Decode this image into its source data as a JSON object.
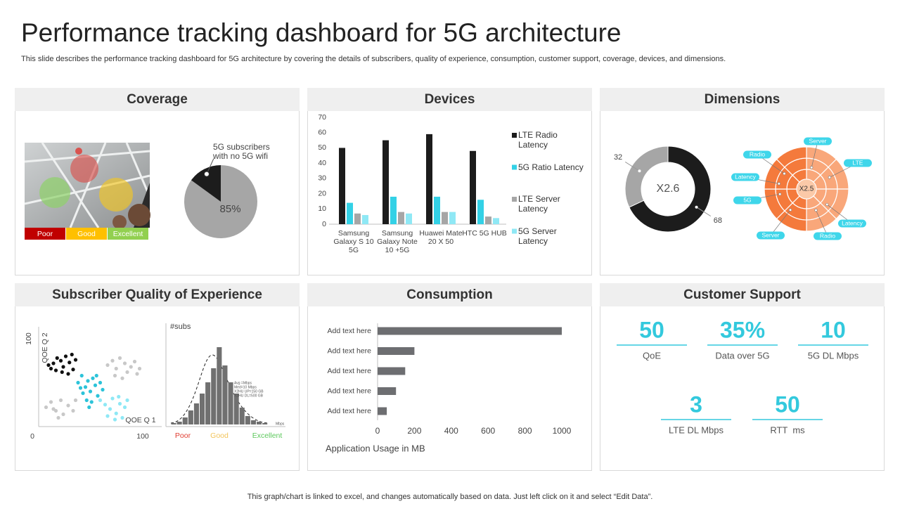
{
  "title": "Performance tracking dashboard for 5G architecture",
  "subtitle": "This slide describes the performance tracking dashboard for 5G architecture by covering the details of subscribers, quality of experience, consumption, customer support, coverage, devices, and dimensions.",
  "footer": "This graph/chart is linked to excel,  and changes automatically based on data. Just left click on it and select “Edit Data”.",
  "panels": [
    "Coverage",
    "Devices",
    "Dimensions",
    "Subscriber Quality of Experience",
    "Consumption",
    "Customer Support"
  ],
  "coverage_legend": [
    {
      "label": "Poor",
      "color": "#c00000"
    },
    {
      "label": "Good",
      "color": "#ffc000"
    },
    {
      "label": "Excellent",
      "color": "#92d050"
    }
  ],
  "chart_data": [
    {
      "type": "pie",
      "annotation": "5G subscribers with no 5G wifi",
      "values": [
        85,
        15
      ],
      "value_labels": [
        "85%",
        null
      ],
      "colors": [
        "#a6a6a6",
        "#1c1c1c"
      ]
    },
    {
      "type": "bar",
      "categories": [
        "Samsung Galaxy S 10 5G",
        "Samsung Galaxy Note 10 +5G",
        "Huawei Mate 20 X 50",
        "HTC 5G HUB"
      ],
      "series": [
        {
          "name": "LTE Radio Latency",
          "color": "#1c1c1c",
          "values": [
            50,
            55,
            59,
            48
          ]
        },
        {
          "name": "5G Ratio Latency",
          "color": "#33d1e6",
          "values": [
            14,
            18,
            18,
            16
          ]
        },
        {
          "name": "LTE Server Latency",
          "color": "#a6a6a6",
          "values": [
            7,
            8,
            8,
            5
          ]
        },
        {
          "name": "5G Server Latency",
          "color": "#8fe8f5",
          "values": [
            6,
            7,
            8,
            4
          ]
        }
      ],
      "ylim": [
        0,
        70
      ],
      "yticks": [
        0,
        10,
        20,
        30,
        40,
        50,
        60,
        70
      ]
    },
    {
      "type": "donut",
      "center_label": "X2.6",
      "values": [
        68,
        32
      ],
      "colors": [
        "#1c1c1c",
        "#a6a6a6"
      ]
    },
    {
      "type": "scatter",
      "xlabel": "QOE Q 1",
      "ylabel": "QOE Q 2",
      "xlim": [
        0,
        100
      ],
      "ylim": [
        0,
        100
      ],
      "xticks": [
        0,
        100
      ],
      "yticks": [
        100
      ],
      "series": [
        {
          "color": "#c8c8c8",
          "x": [
            56,
            60,
            63,
            66,
            70,
            72,
            75,
            78,
            80,
            68,
            62,
            82,
            6,
            10,
            14,
            18,
            20,
            24,
            28,
            30,
            16,
            12
          ],
          "y": [
            70,
            75,
            66,
            78,
            72,
            62,
            68,
            74,
            60,
            55,
            58,
            66,
            22,
            28,
            18,
            30,
            14,
            24,
            18,
            30,
            10,
            20
          ]
        },
        {
          "color": "#111111",
          "x": [
            8,
            12,
            15,
            18,
            20,
            22,
            25,
            28,
            14,
            24,
            30,
            19,
            10,
            27
          ],
          "y": [
            70,
            72,
            78,
            75,
            68,
            80,
            73,
            65,
            64,
            60,
            76,
            62,
            66,
            82
          ]
        },
        {
          "color": "#2cc3d9",
          "x": [
            32,
            35,
            38,
            40,
            42,
            44,
            36,
            46,
            48,
            50,
            39,
            43,
            52,
            34,
            47,
            41
          ],
          "y": [
            50,
            58,
            45,
            52,
            40,
            55,
            38,
            47,
            35,
            50,
            30,
            28,
            42,
            44,
            58,
            22
          ]
        },
        {
          "color": "#8fe8f5",
          "x": [
            50,
            54,
            58,
            60,
            63,
            66,
            68,
            62,
            56,
            70,
            72,
            65
          ],
          "y": [
            30,
            25,
            20,
            32,
            15,
            26,
            10,
            8,
            12,
            22,
            30,
            34
          ]
        }
      ]
    },
    {
      "type": "histogram",
      "title": "#subs",
      "xlabel": "Mbps",
      "annotations": [
        "Avg =Mbps",
        "Med=10 Mbps",
        "X2HU UP=150 GB",
        "X2HU DL=500 GB"
      ],
      "bins": [
        0,
        1,
        2,
        3,
        4,
        5,
        6,
        7,
        8,
        9,
        10,
        11,
        12,
        13,
        14,
        15,
        16,
        17
      ],
      "counts": [
        1,
        2,
        5,
        10,
        15,
        22,
        30,
        40,
        55,
        42,
        30,
        22,
        12,
        6,
        3,
        2,
        1
      ],
      "color": "#707070",
      "xlim": [
        0,
        20
      ],
      "ylim": [
        0,
        60
      ],
      "legend": [
        {
          "label": "Poor",
          "color": "#e03c31"
        },
        {
          "label": "Good",
          "color": "#f2c45a"
        },
        {
          "label": "Excellent",
          "color": "#5cc85c"
        }
      ]
    },
    {
      "type": "hbar",
      "xlabel": "Application Usage in MB",
      "categories": [
        "Add text here",
        "Add text here",
        "Add text here",
        "Add text here",
        "Add text here"
      ],
      "values": [
        1000,
        200,
        150,
        100,
        50
      ],
      "color": "#6d6e71",
      "xlim": [
        0,
        1000
      ],
      "xticks": [
        0,
        200,
        400,
        600,
        800,
        1000
      ]
    }
  ],
  "dimensions_radial": {
    "center": "X2.5",
    "labels": [
      "Server",
      "Radio",
      "LTE",
      "Latency",
      "5G",
      "Latency",
      "Server",
      "Radio"
    ]
  },
  "customer_support": [
    {
      "value": "50",
      "label": "QoE"
    },
    {
      "value": "35%",
      "label": "Data over 5G"
    },
    {
      "value": "10",
      "label": "5G DL Mbps"
    },
    {
      "value": "3",
      "label": "LTE DL Mbps"
    },
    {
      "value": "50",
      "label": "RTT  ms"
    }
  ]
}
